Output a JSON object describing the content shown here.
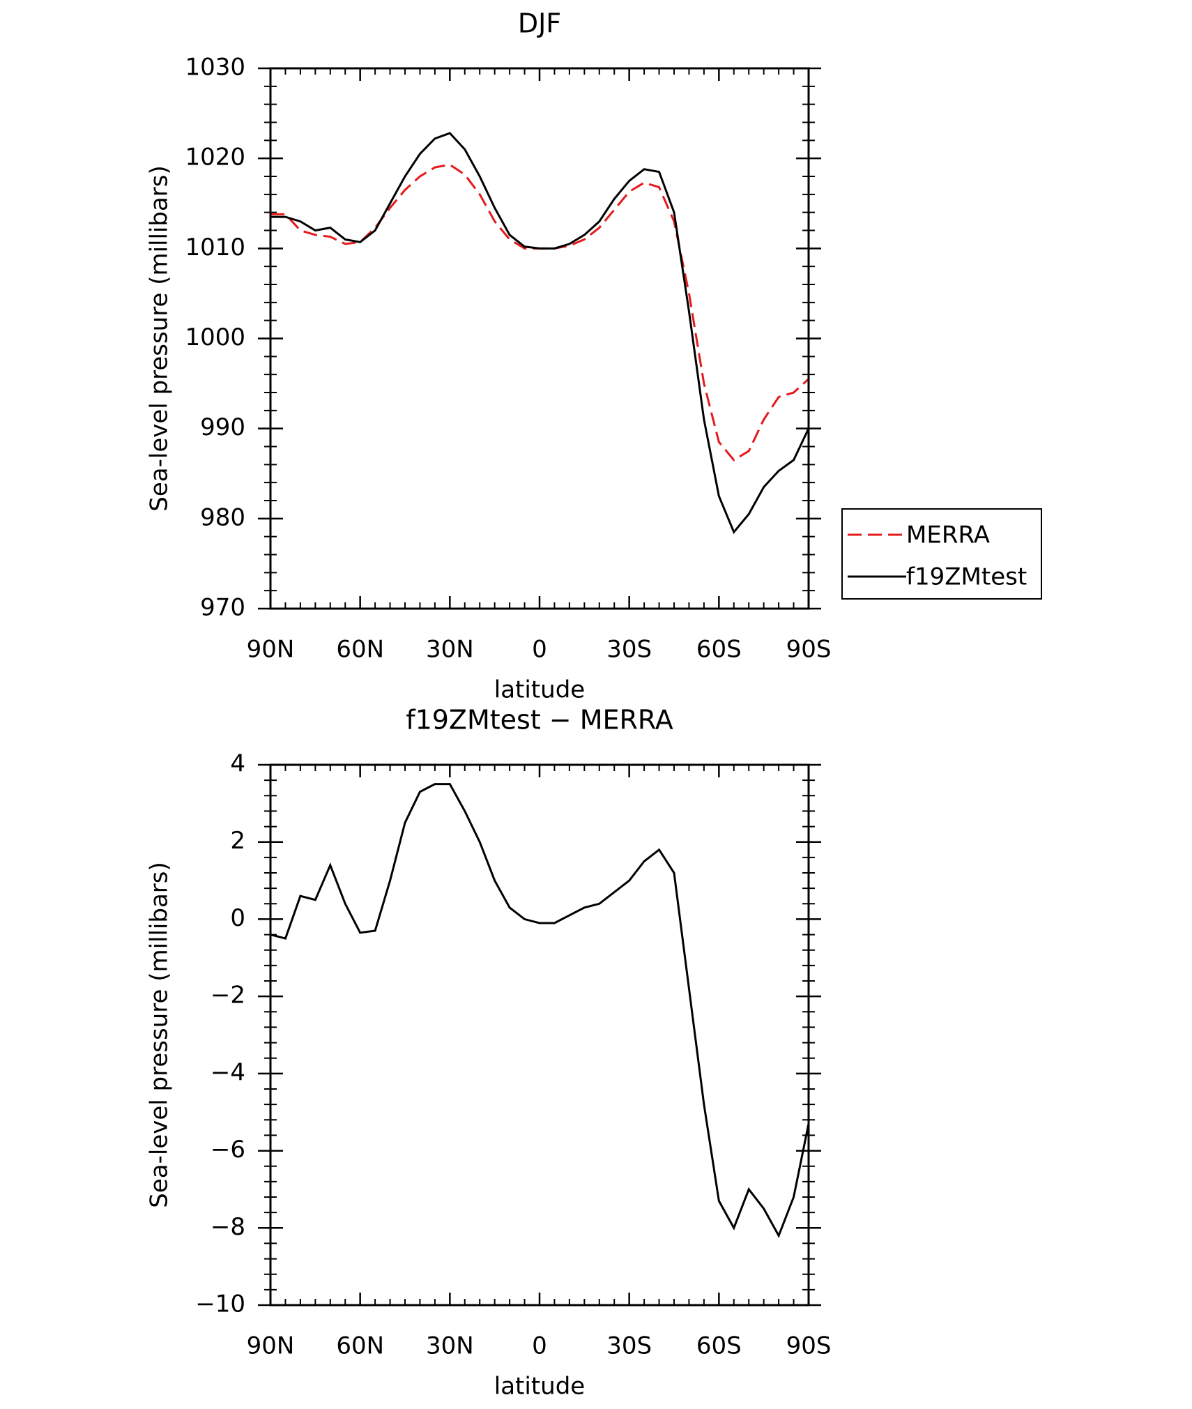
{
  "chart_data": [
    {
      "type": "line",
      "title": "DJF",
      "xlabel": "latitude",
      "ylabel": "Sea-level pressure (millibars)",
      "x": [
        90,
        85,
        80,
        75,
        70,
        65,
        60,
        55,
        50,
        45,
        40,
        35,
        30,
        25,
        20,
        15,
        10,
        5,
        0,
        -5,
        -10,
        -15,
        -20,
        -25,
        -30,
        -35,
        -40,
        -45,
        -50,
        -55,
        -60,
        -65,
        -70,
        -75,
        -80,
        -85,
        -90
      ],
      "series": [
        {
          "name": "MERRA",
          "color": "#e41a1c",
          "linestyle": "dashed",
          "values": [
            1013.8,
            1013.8,
            1012,
            1011.5,
            1011.3,
            1010.5,
            1010.7,
            1012.3,
            1014.5,
            1016.5,
            1018,
            1019,
            1019.3,
            1018.2,
            1016,
            1013,
            1011,
            1010,
            1010,
            1010,
            1010.3,
            1011,
            1012.3,
            1014.3,
            1016.3,
            1017.3,
            1016.8,
            1013,
            1005,
            995,
            988.5,
            986.5,
            987.5,
            991,
            993.5,
            994,
            995.5
          ]
        },
        {
          "name": "f19ZMtest",
          "color": "#000000",
          "linestyle": "solid",
          "values": [
            1013.5,
            1013.5,
            1013,
            1012,
            1012.3,
            1011,
            1010.7,
            1012,
            1015,
            1018,
            1020.5,
            1022.2,
            1022.8,
            1021,
            1018,
            1014.5,
            1011.5,
            1010.2,
            1010,
            1010,
            1010.5,
            1011.5,
            1013,
            1015.5,
            1017.5,
            1018.8,
            1018.5,
            1014,
            1003,
            991,
            982.5,
            978.5,
            980.5,
            983.5,
            985.3,
            986.5,
            990
          ]
        }
      ],
      "xlim": [
        90,
        -90
      ],
      "xticks": [
        {
          "value": 90,
          "label": "90N"
        },
        {
          "value": 60,
          "label": "60N"
        },
        {
          "value": 30,
          "label": "30N"
        },
        0,
        {
          "value": -30,
          "label": "30S"
        },
        {
          "value": -60,
          "label": "60S"
        },
        {
          "value": -90,
          "label": "90S"
        }
      ],
      "ylim": [
        970,
        1030
      ],
      "yticks": [
        970,
        980,
        990,
        1000,
        1010,
        1020,
        1030
      ],
      "legend": "right"
    },
    {
      "type": "line",
      "title": "f19ZMtest − MERRA",
      "xlabel": "latitude",
      "ylabel": "Sea-level pressure (millibars)",
      "x": [
        90,
        85,
        80,
        75,
        70,
        65,
        60,
        55,
        50,
        45,
        40,
        35,
        30,
        25,
        20,
        15,
        10,
        5,
        0,
        -5,
        -10,
        -15,
        -20,
        -25,
        -30,
        -35,
        -40,
        -45,
        -50,
        -55,
        -60,
        -65,
        -70,
        -75,
        -80,
        -85,
        -90
      ],
      "series": [
        {
          "color": "#000000",
          "linestyle": "solid",
          "values": [
            -0.4,
            -0.5,
            0.6,
            0.5,
            1.4,
            0.4,
            -0.35,
            -0.3,
            1.0,
            2.5,
            3.3,
            3.5,
            3.5,
            2.8,
            2.0,
            1.0,
            0.3,
            0,
            -0.1,
            -0.1,
            0.1,
            0.3,
            0.4,
            0.7,
            1.0,
            1.5,
            1.8,
            1.2,
            -1.8,
            -4.8,
            -7.3,
            -8.0,
            -7.0,
            -7.5,
            -8.2,
            -7.2,
            -5.3
          ]
        }
      ],
      "xlim": [
        90,
        -90
      ],
      "xticks": [
        {
          "value": 90,
          "label": "90N"
        },
        {
          "value": 60,
          "label": "60N"
        },
        {
          "value": 30,
          "label": "30N"
        },
        0,
        {
          "value": -30,
          "label": "30S"
        },
        {
          "value": -60,
          "label": "60S"
        },
        {
          "value": -90,
          "label": "90S"
        }
      ],
      "ylim": [
        -10,
        4
      ],
      "yticks": [
        {
          "value": -10,
          "label": "−10"
        },
        {
          "value": -8,
          "label": "−8"
        },
        {
          "value": -6,
          "label": "−6"
        },
        {
          "value": -4,
          "label": "−4"
        },
        {
          "value": -2,
          "label": "−2"
        },
        0,
        2,
        4
      ]
    }
  ]
}
